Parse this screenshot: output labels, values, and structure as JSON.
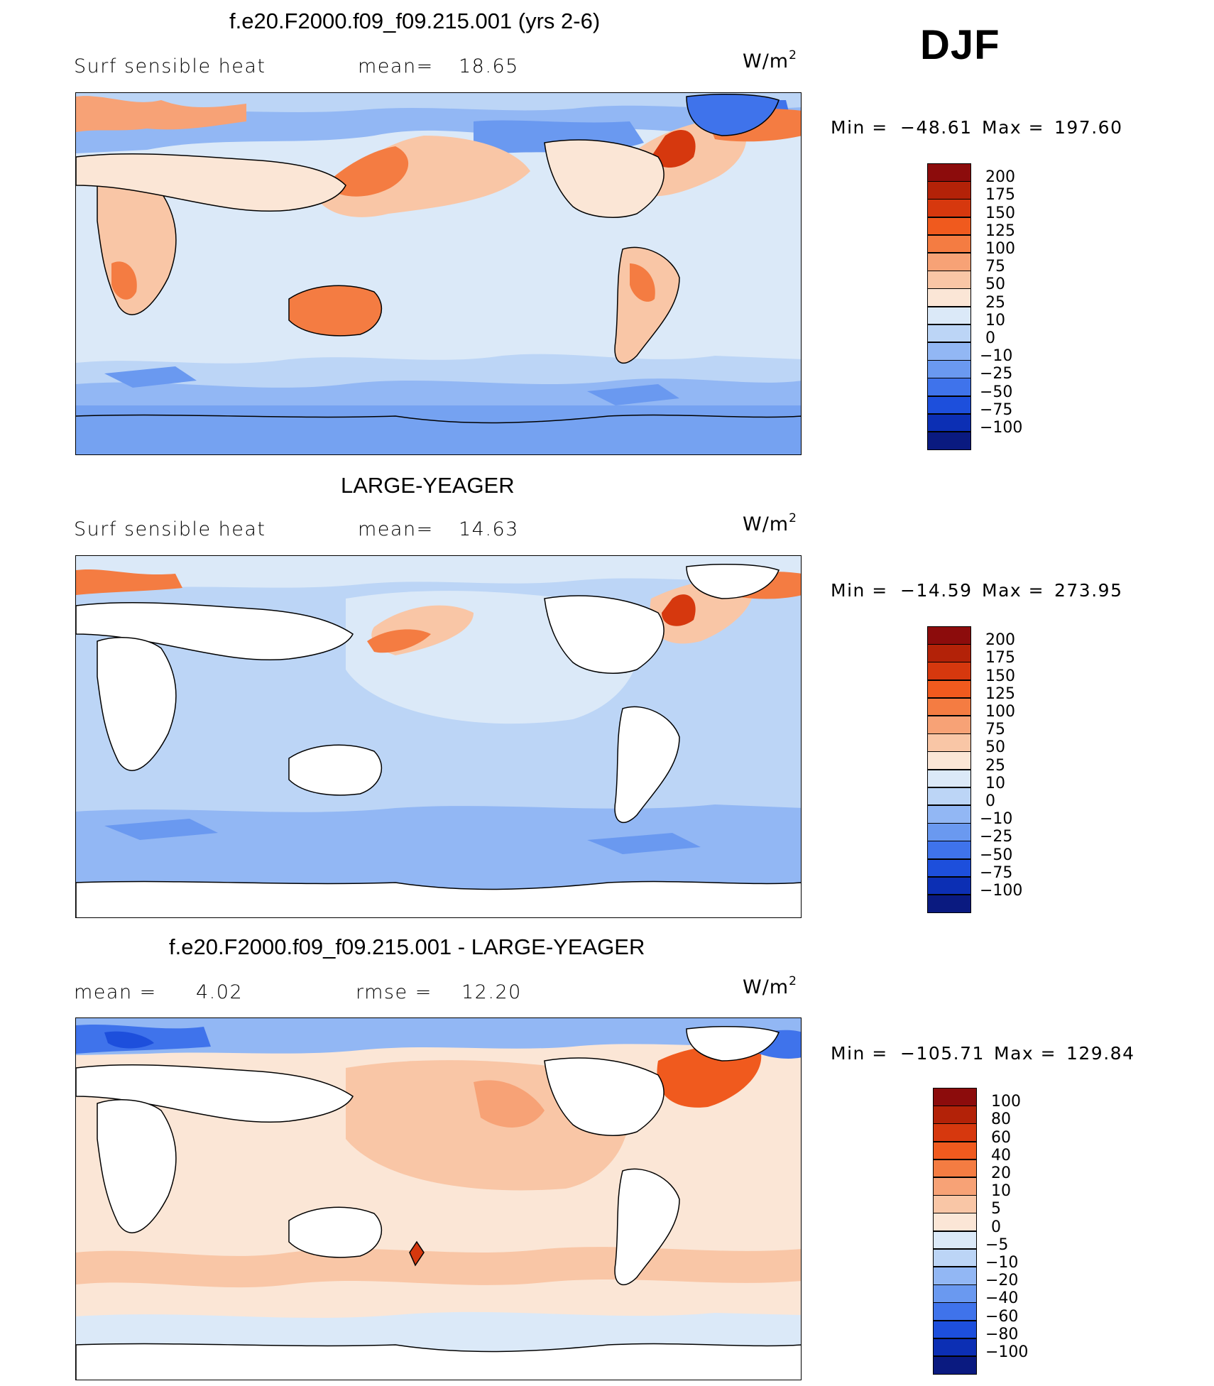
{
  "figure": {
    "season": "DJF",
    "units_base": "W/m",
    "units_exp": "2"
  },
  "panels": [
    {
      "title": "f.e20.F2000.f09_f09.215.001 (yrs 2-6)",
      "left_label": "Surf  sensible  heat",
      "stat_label": "mean=",
      "stat_value": "18.65",
      "min_label": "Min  =",
      "min_value": "−48.61",
      "max_label": "Max  =",
      "max_value": "197.60",
      "colorbar_labels": [
        "200",
        "175",
        "150",
        "125",
        "100",
        "75",
        "50",
        "25",
        "10",
        "0",
        "−10",
        "−25",
        "−50",
        "−75",
        "−100"
      ],
      "colorbar_colors": [
        "#8c0c0c",
        "#b32208",
        "#d6380e",
        "#f05a1e",
        "#f47c42",
        "#f7a276",
        "#f9c6a6",
        "#fbe6d6",
        "#dbe9f8",
        "#bcd5f6",
        "#92b7f4",
        "#6a99f0",
        "#3f73eb",
        "#1d4fdc",
        "#0c2fb4",
        "#0a1a80"
      ]
    },
    {
      "title": "LARGE-YEAGER",
      "left_label": "Surf  sensible  heat",
      "stat_label": "mean=",
      "stat_value": "14.63",
      "min_label": "Min  =",
      "min_value": "−14.59",
      "max_label": "Max  =",
      "max_value": "273.95",
      "colorbar_labels": [
        "200",
        "175",
        "150",
        "125",
        "100",
        "75",
        "50",
        "25",
        "10",
        "0",
        "−10",
        "−25",
        "−50",
        "−75",
        "−100"
      ],
      "colorbar_colors": [
        "#8c0c0c",
        "#b32208",
        "#d6380e",
        "#f05a1e",
        "#f47c42",
        "#f7a276",
        "#f9c6a6",
        "#fbe6d6",
        "#dbe9f8",
        "#bcd5f6",
        "#92b7f4",
        "#6a99f0",
        "#3f73eb",
        "#1d4fdc",
        "#0c2fb4",
        "#0a1a80"
      ]
    },
    {
      "title": "f.e20.F2000.f09_f09.215.001 - LARGE-YEAGER",
      "left_label": "mean  =",
      "left_value": "4.02",
      "stat_label": "rmse  =",
      "stat_value": "12.20",
      "min_label": "Min  =",
      "min_value": "−105.71",
      "max_label": "Max  =",
      "max_value": "129.84",
      "colorbar_labels": [
        "100",
        "80",
        "60",
        "40",
        "20",
        "10",
        "5",
        "0",
        "−5",
        "−10",
        "−20",
        "−40",
        "−60",
        "−80",
        "−100"
      ],
      "colorbar_colors": [
        "#8c0c0c",
        "#b32208",
        "#d6380e",
        "#f05a1e",
        "#f47c42",
        "#f7a276",
        "#f9c6a6",
        "#fbe6d6",
        "#dbe9f8",
        "#bcd5f6",
        "#92b7f4",
        "#6a99f0",
        "#3f73eb",
        "#1d4fdc",
        "#0c2fb4",
        "#0a1a80"
      ]
    }
  ]
}
